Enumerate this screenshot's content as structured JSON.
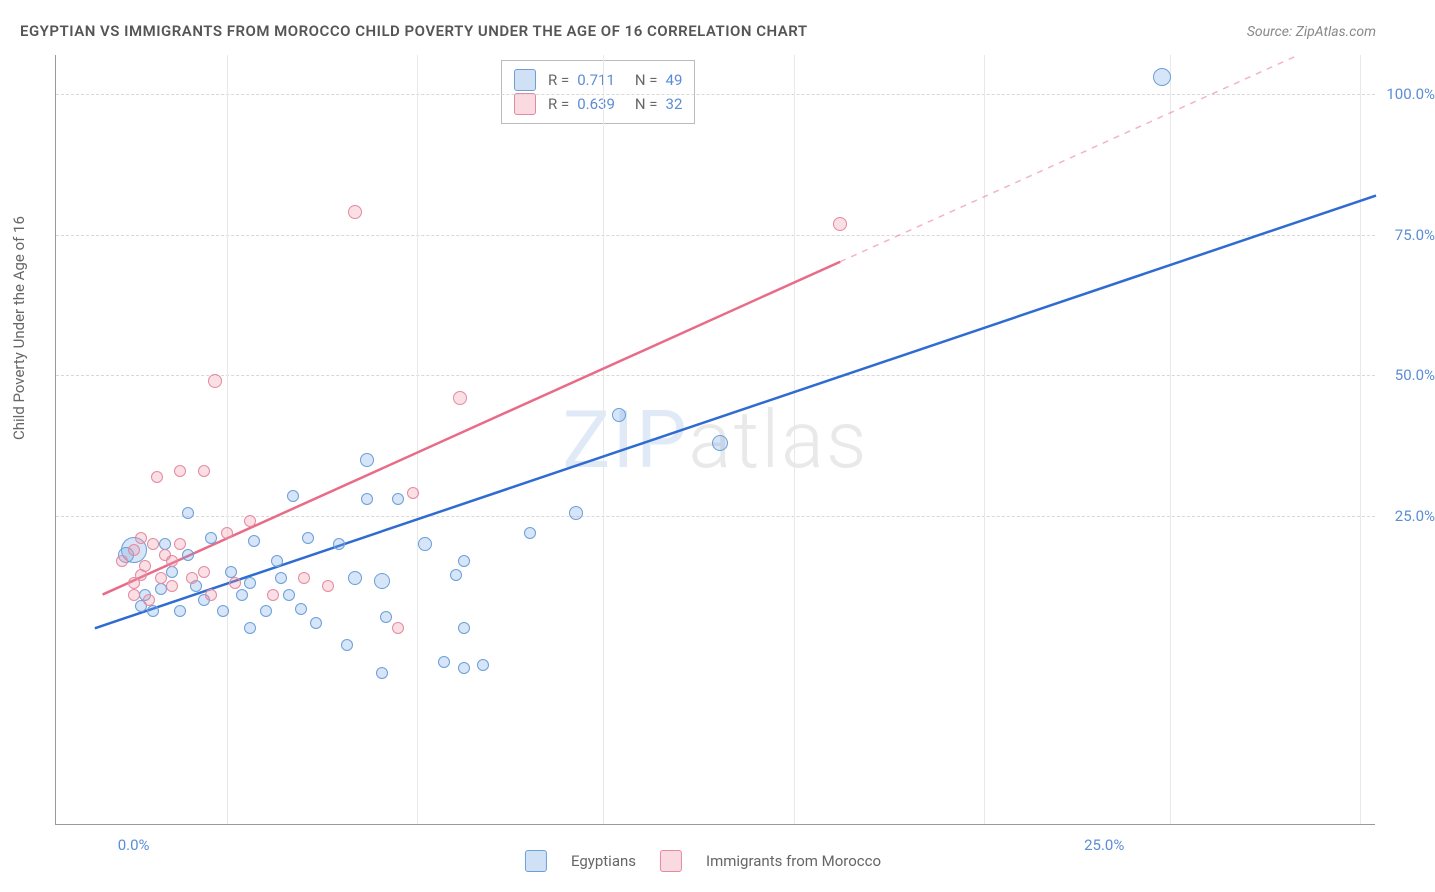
{
  "title": "EGYPTIAN VS IMMIGRANTS FROM MOROCCO CHILD POVERTY UNDER THE AGE OF 16 CORRELATION CHART",
  "source_prefix": "Source: ",
  "source": "ZipAtlas.com",
  "ylabel": "Child Poverty Under the Age of 16",
  "watermark_a": "ZIP",
  "watermark_b": "atlas",
  "chart": {
    "type": "scatter",
    "background_color": "#ffffff",
    "grid_color": "#d8d8d8",
    "axis_color": "#999999",
    "tick_color": "#5b8dd6",
    "label_color": "#666666",
    "title_color": "#555555",
    "title_fontsize": 15,
    "tick_fontsize": 15,
    "x_domain": [
      -2,
      32
    ],
    "y_domain": [
      -30,
      107
    ],
    "y_ticks": [
      25.0,
      50.0,
      75.0,
      100.0
    ],
    "y_tick_labels": [
      "25.0%",
      "50.0%",
      "75.0%",
      "100.0%"
    ],
    "x_ticks": [
      0.0,
      25.0
    ],
    "x_tick_labels": [
      "0.0%",
      "25.0%"
    ],
    "x_gridlines": [
      2.4,
      7.3,
      12.1,
      17.0,
      21.9,
      26.7,
      31.6
    ],
    "series": [
      {
        "name": "Egyptians",
        "color_fill": "rgba(120,170,230,0.30)",
        "color_stroke": "#6b9fd8",
        "marker_radius_default": 7,
        "trend": {
          "color": "#2f6bd0",
          "width": 2.5,
          "x1": -1,
          "y1": 5,
          "x2": 32,
          "y2": 82,
          "dash_from_x": null
        },
        "stats": {
          "R_label": "R =",
          "R": "0.711",
          "N_label": "N =",
          "N": "49"
        },
        "points": [
          {
            "x": 26.5,
            "y": 103,
            "r": 9
          },
          {
            "x": 12.5,
            "y": 43,
            "r": 7
          },
          {
            "x": 15.1,
            "y": 38,
            "r": 8
          },
          {
            "x": 11.4,
            "y": 25.5,
            "r": 7
          },
          {
            "x": 6.0,
            "y": 35,
            "r": 7
          },
          {
            "x": 7.5,
            "y": 20,
            "r": 7
          },
          {
            "x": 8.5,
            "y": 17,
            "r": 6
          },
          {
            "x": 6.0,
            "y": 28,
            "r": 6
          },
          {
            "x": 6.8,
            "y": 28,
            "r": 6
          },
          {
            "x": 4.1,
            "y": 28.5,
            "r": 6
          },
          {
            "x": 4.5,
            "y": 21,
            "r": 6
          },
          {
            "x": 5.3,
            "y": 20,
            "r": 6
          },
          {
            "x": 5.7,
            "y": 14,
            "r": 7
          },
          {
            "x": 6.4,
            "y": 13.5,
            "r": 8
          },
          {
            "x": 6.5,
            "y": 7,
            "r": 6
          },
          {
            "x": 3.1,
            "y": 20.5,
            "r": 6
          },
          {
            "x": 3.8,
            "y": 14,
            "r": 6
          },
          {
            "x": 2.5,
            "y": 15,
            "r": 6
          },
          {
            "x": 2.8,
            "y": 11,
            "r": 6
          },
          {
            "x": 2.0,
            "y": 21,
            "r": 6
          },
          {
            "x": 1.4,
            "y": 18,
            "r": 6
          },
          {
            "x": 1.0,
            "y": 15,
            "r": 6
          },
          {
            "x": 0.7,
            "y": 12,
            "r": 6
          },
          {
            "x": 0.3,
            "y": 11,
            "r": 6
          },
          {
            "x": 1.8,
            "y": 10,
            "r": 6
          },
          {
            "x": 0.2,
            "y": 9,
            "r": 6
          },
          {
            "x": 1.2,
            "y": 8,
            "r": 6
          },
          {
            "x": 0.0,
            "y": 19,
            "r": 13
          },
          {
            "x": -0.2,
            "y": 18,
            "r": 8
          },
          {
            "x": 3.4,
            "y": 8,
            "r": 6
          },
          {
            "x": 4.3,
            "y": 8.5,
            "r": 6
          },
          {
            "x": 1.6,
            "y": 12.5,
            "r": 6
          },
          {
            "x": 3.0,
            "y": 13,
            "r": 6
          },
          {
            "x": 4.0,
            "y": 11,
            "r": 6
          },
          {
            "x": 8.3,
            "y": 14.5,
            "r": 6
          },
          {
            "x": 8.5,
            "y": 5,
            "r": 6
          },
          {
            "x": 8.0,
            "y": -1,
            "r": 6
          },
          {
            "x": 8.5,
            "y": -2,
            "r": 6
          },
          {
            "x": 9.0,
            "y": -1.5,
            "r": 6
          },
          {
            "x": 6.4,
            "y": -3,
            "r": 6
          },
          {
            "x": 4.7,
            "y": 6,
            "r": 6
          },
          {
            "x": 5.5,
            "y": 2,
            "r": 6
          },
          {
            "x": 3.0,
            "y": 5,
            "r": 6
          },
          {
            "x": 2.3,
            "y": 8,
            "r": 6
          },
          {
            "x": 1.4,
            "y": 25.5,
            "r": 6
          },
          {
            "x": 0.5,
            "y": 8,
            "r": 6
          },
          {
            "x": 10.2,
            "y": 22,
            "r": 6
          },
          {
            "x": 3.7,
            "y": 17,
            "r": 6
          },
          {
            "x": 0.8,
            "y": 20,
            "r": 6
          }
        ]
      },
      {
        "name": "Immigrants from Morocco",
        "color_fill": "rgba(240,150,170,0.30)",
        "color_stroke": "#e48aa0",
        "marker_radius_default": 7,
        "trend": {
          "color": "#e86b87",
          "width": 2.5,
          "x1": -0.8,
          "y1": 11,
          "x2": 30,
          "y2": 107,
          "dash_from_x": 18.2
        },
        "stats": {
          "R_label": "R =",
          "R": "0.639",
          "N_label": "N =",
          "N": "32"
        },
        "points": [
          {
            "x": 5.7,
            "y": 79,
            "r": 7
          },
          {
            "x": 18.2,
            "y": 77,
            "r": 7
          },
          {
            "x": 2.1,
            "y": 49,
            "r": 7
          },
          {
            "x": 8.4,
            "y": 46,
            "r": 7
          },
          {
            "x": 1.2,
            "y": 33,
            "r": 6
          },
          {
            "x": 1.8,
            "y": 33,
            "r": 6
          },
          {
            "x": 0.6,
            "y": 32,
            "r": 6
          },
          {
            "x": 7.2,
            "y": 29,
            "r": 6
          },
          {
            "x": 3.0,
            "y": 24,
            "r": 6
          },
          {
            "x": 0.2,
            "y": 21,
            "r": 6
          },
          {
            "x": 0.5,
            "y": 20,
            "r": 6
          },
          {
            "x": 0.0,
            "y": 19,
            "r": 6
          },
          {
            "x": 0.8,
            "y": 18,
            "r": 6
          },
          {
            "x": 1.0,
            "y": 17,
            "r": 6
          },
          {
            "x": 0.3,
            "y": 16,
            "r": 6
          },
          {
            "x": 0.2,
            "y": 14.5,
            "r": 6
          },
          {
            "x": 0.7,
            "y": 14,
            "r": 6
          },
          {
            "x": 1.0,
            "y": 12.5,
            "r": 6
          },
          {
            "x": 1.5,
            "y": 14,
            "r": 6
          },
          {
            "x": 1.8,
            "y": 15,
            "r": 6
          },
          {
            "x": 2.4,
            "y": 22,
            "r": 6
          },
          {
            "x": 1.2,
            "y": 20,
            "r": 6
          },
          {
            "x": 4.4,
            "y": 14,
            "r": 6
          },
          {
            "x": 5.0,
            "y": 12.5,
            "r": 6
          },
          {
            "x": 3.6,
            "y": 11,
            "r": 6
          },
          {
            "x": 2.0,
            "y": 11,
            "r": 6
          },
          {
            "x": 2.6,
            "y": 13,
            "r": 6
          },
          {
            "x": 0.0,
            "y": 13,
            "r": 6
          },
          {
            "x": -0.3,
            "y": 17,
            "r": 6
          },
          {
            "x": 0.0,
            "y": 11,
            "r": 6
          },
          {
            "x": 0.4,
            "y": 10,
            "r": 6
          },
          {
            "x": 6.8,
            "y": 5,
            "r": 6
          }
        ]
      }
    ]
  }
}
